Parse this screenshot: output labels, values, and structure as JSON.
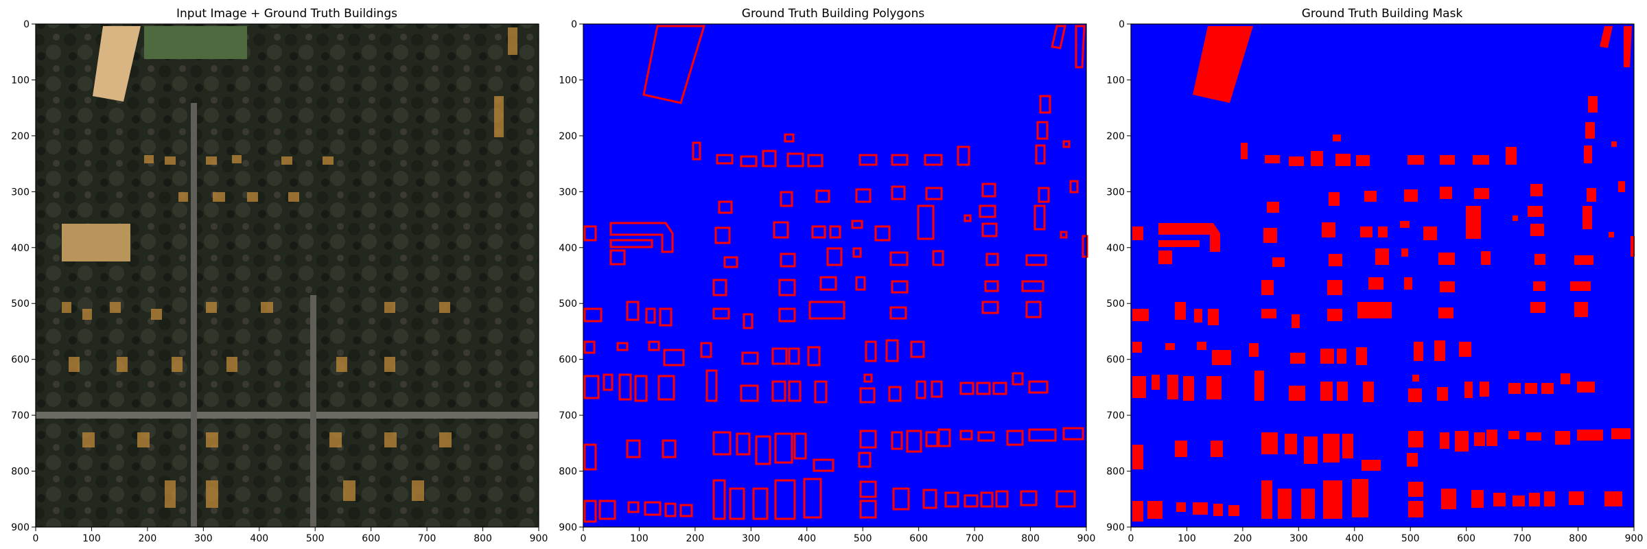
{
  "figure": {
    "panels": [
      {
        "title": "Input Image + Ground Truth Buildings"
      },
      {
        "title": "Ground Truth Building Polygons"
      },
      {
        "title": "Ground Truth Building Mask"
      }
    ]
  },
  "axes": {
    "xticks": [
      "0",
      "100",
      "200",
      "300",
      "400",
      "500",
      "600",
      "700",
      "800",
      "900"
    ],
    "yticks": [
      "0",
      "100",
      "200",
      "300",
      "400",
      "500",
      "600",
      "700",
      "800",
      "900"
    ]
  },
  "colors": {
    "background_blue": "#0000ff",
    "building_red": "#ff0000",
    "aerial_dark": "#2b2f26",
    "building_overlay": "#c08a3a"
  },
  "chart_data": [
    {
      "type": "heatmap",
      "title": "Input Image + Ground Truth Buildings",
      "xlim": [
        0,
        900
      ],
      "ylim": [
        900,
        0
      ],
      "content": "aerial image with building overlay"
    },
    {
      "type": "heatmap",
      "title": "Ground Truth Building Polygons",
      "xlim": [
        0,
        900
      ],
      "ylim": [
        900,
        0
      ],
      "content": "building outlines"
    },
    {
      "type": "heatmap",
      "title": "Ground Truth Building Mask",
      "xlim": [
        0,
        900
      ],
      "ylim": [
        900,
        0
      ],
      "content": "filled building mask"
    }
  ]
}
